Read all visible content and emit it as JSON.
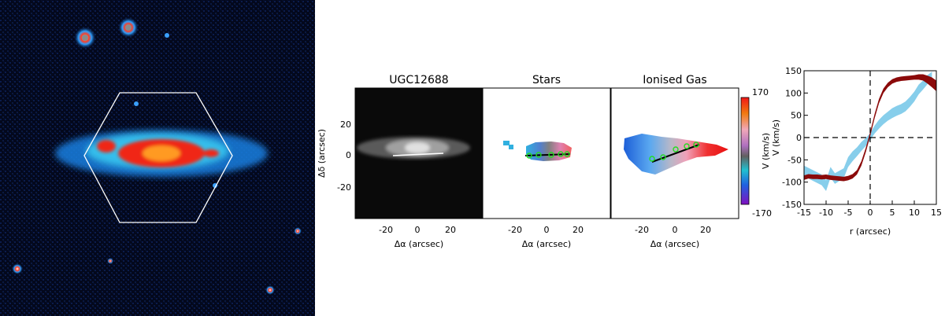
{
  "panels": {
    "image": {
      "title": "UGC12688",
      "xlabel": "Δα (arcsec)",
      "ylabel": "Δδ (arcsec)",
      "xticks": [
        "-20",
        "0",
        "20"
      ],
      "yticks": [
        "20",
        "0",
        "-20"
      ]
    },
    "stars": {
      "title": "Stars",
      "xlabel": "Δα (arcsec)",
      "xticks": [
        "-20",
        "0",
        "20"
      ]
    },
    "gas": {
      "title": "Ionised Gas",
      "xlabel": "Δα (arcsec)",
      "xticks": [
        "-20",
        "0",
        "20"
      ]
    },
    "colorbar": {
      "label": "V (km/s)",
      "max_label": "170",
      "min_label": "-170"
    }
  },
  "chart_data": {
    "type": "line",
    "xlabel": "r (arcsec)",
    "ylabel": "V (km/s)",
    "xlim": [
      -15,
      15
    ],
    "ylim": [
      -150,
      150
    ],
    "xticks": [
      "-15",
      "-10",
      "-5",
      "0",
      "5",
      "10",
      "15"
    ],
    "yticks": [
      "150",
      "100",
      "50",
      "0",
      "-50",
      "-100",
      "-150"
    ],
    "reference_lines": {
      "x": 0,
      "y": 0,
      "style": "dashed"
    },
    "series": [
      {
        "color": "#87ceeb",
        "x": [
          -15,
          -13,
          -11,
          -10,
          -9,
          -8,
          -6,
          -5,
          -4,
          -3,
          -2,
          -1,
          0,
          1,
          2,
          3,
          4,
          5,
          6,
          7,
          8,
          9,
          10,
          11,
          12,
          13,
          14
        ],
        "y": [
          -75,
          -85,
          -95,
          -108,
          -78,
          -92,
          -80,
          -55,
          -42,
          -32,
          -20,
          -10,
          2,
          18,
          30,
          40,
          48,
          55,
          60,
          64,
          70,
          80,
          92,
          108,
          118,
          130,
          138
        ],
        "band": [
          12,
          12,
          12,
          12,
          12,
          12,
          11,
          11,
          11,
          10,
          10,
          9,
          8,
          9,
          10,
          10,
          10,
          11,
          11,
          11,
          11,
          11,
          11,
          11,
          10,
          10,
          10
        ]
      },
      {
        "color": "#8b0a0a",
        "x": [
          -15,
          -14,
          -13,
          -12,
          -11,
          -10,
          -9,
          -8,
          -7,
          -6,
          -5,
          -4,
          -3,
          -2,
          -1,
          0,
          1,
          2,
          3,
          4,
          5,
          6,
          7,
          8,
          9,
          10,
          11,
          12,
          13,
          14,
          15
        ],
        "y": [
          -90,
          -87,
          -88,
          -88,
          -89,
          -88,
          -90,
          -91,
          -92,
          -93,
          -91,
          -87,
          -78,
          -58,
          -28,
          8,
          48,
          82,
          105,
          118,
          126,
          130,
          132,
          133,
          134,
          135,
          136,
          135,
          130,
          124,
          116
        ],
        "band": [
          5,
          5,
          5,
          5,
          5,
          5,
          5,
          5,
          5,
          5,
          5,
          5,
          5,
          5,
          5,
          5,
          5,
          5,
          5,
          5,
          5,
          5,
          5,
          5,
          5,
          5,
          6,
          7,
          9,
          11,
          12
        ]
      }
    ]
  }
}
